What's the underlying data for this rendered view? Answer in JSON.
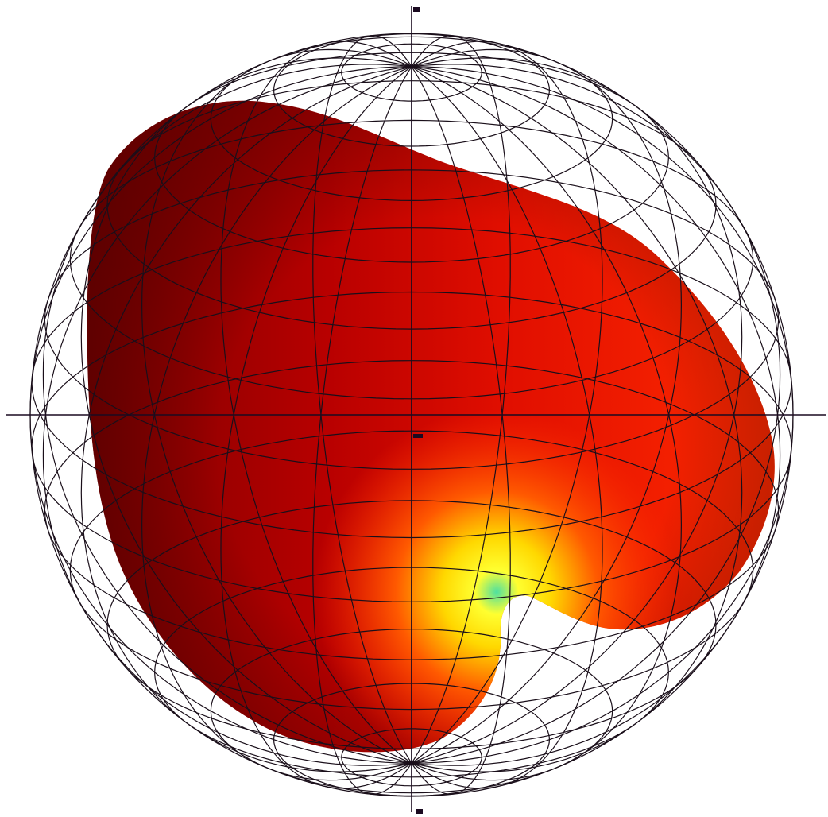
{
  "figure": {
    "kind": "3d-radiation-pattern",
    "background": "#ffffff",
    "wireframe_color": "#1a0f1a",
    "axis_color": "#1a0a20",
    "meridian_count": 24,
    "parallel_count": 17,
    "surface_colormap": [
      "#7a0000",
      "#b80000",
      "#e00e00",
      "#ff2a00",
      "#ff5a00",
      "#ff9a00",
      "#ffd800",
      "#ffff30",
      "#9ef27a",
      "#4fe0a0"
    ],
    "axis_labels": {
      "top": "",
      "bottom": "",
      "left": "",
      "right": "",
      "center": ""
    }
  }
}
